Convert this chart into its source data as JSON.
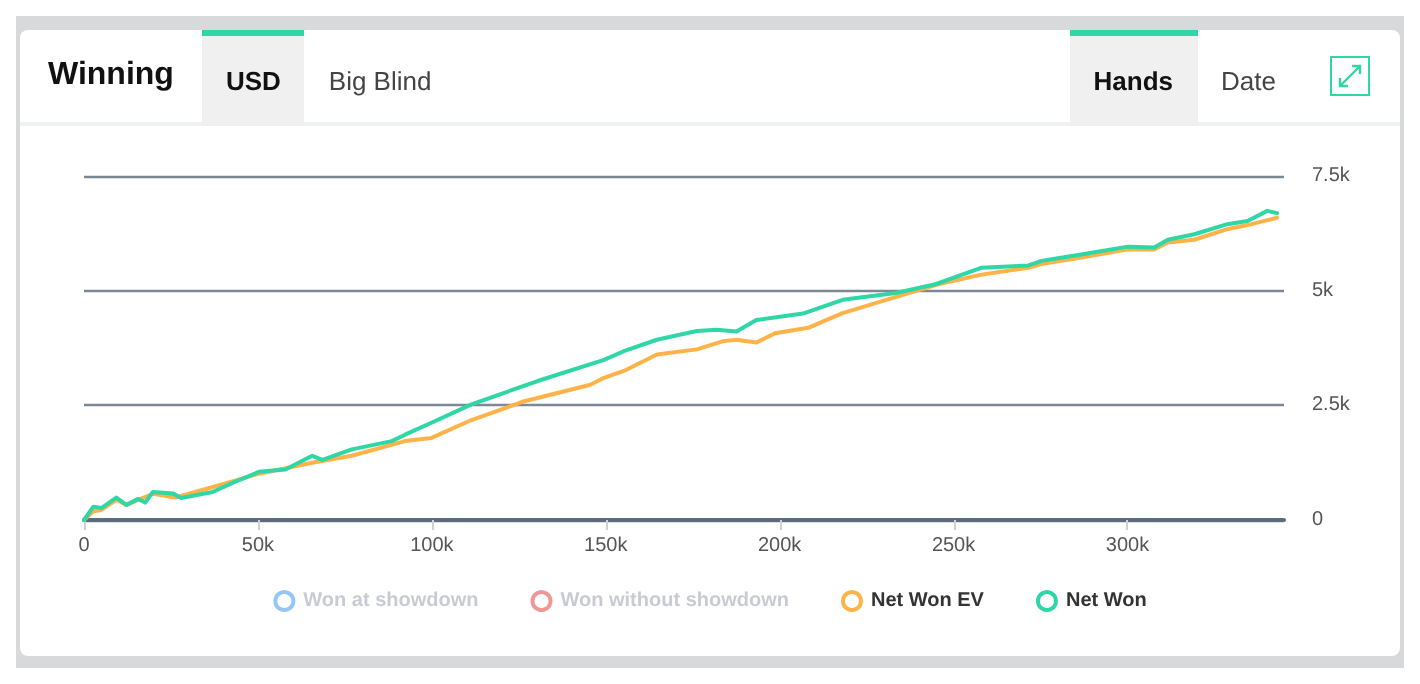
{
  "chart_data": {
    "type": "line",
    "title": "Winning",
    "annotations": [
      "USD",
      "Big Blind",
      "Hands",
      "Date"
    ],
    "xlim": [
      0,
      345000
    ],
    "xticks": [
      0,
      {
        "value": 50000,
        "label": "50k"
      },
      {
        "value": 100000,
        "label": "100k"
      },
      {
        "value": 150000,
        "label": "150k"
      },
      {
        "value": 200000,
        "label": "200k"
      },
      {
        "value": 250000,
        "label": "250k"
      },
      {
        "value": 300000,
        "label": "300k"
      }
    ],
    "ylim": [
      0,
      7500
    ],
    "yticks": [
      0,
      {
        "value": 2500,
        "label": "2.5k"
      },
      {
        "value": 5000,
        "label": "5k"
      },
      {
        "value": 7500,
        "label": "7.5k"
      }
    ],
    "grid": "y",
    "legend": "bottom",
    "marker": "none",
    "line_style": "solid",
    "series": [
      {
        "name": "Won at showdown",
        "color": "#6aaef0"
      },
      {
        "name": "Won without showdown",
        "color": "#e86a6a"
      },
      {
        "name": "Net Won EV",
        "color": "#ffb247",
        "x": [
          0,
          400,
          2700,
          5000,
          9300,
          12200,
          15600,
          19800,
          26300,
          37600,
          50300,
          65600,
          77000,
          92300,
          99900,
          111400,
          126600,
          130400,
          145600,
          149500,
          155200,
          164700,
          176200,
          183800,
          187600,
          193300,
          198700,
          208200,
          218100,
          232800,
          245600,
          258100,
          271500,
          275300,
          286700,
          300100,
          307700,
          311600,
          319200,
          328700,
          334500,
          343000
        ],
        "values": [
          0,
          0,
          190,
          220,
          440,
          330,
          440,
          570,
          490,
          730,
          1010,
          1250,
          1400,
          1720,
          1790,
          2180,
          2590,
          2660,
          2950,
          3100,
          3250,
          3610,
          3720,
          3900,
          3930,
          3870,
          4070,
          4190,
          4510,
          4850,
          5140,
          5350,
          5500,
          5580,
          5720,
          5900,
          5900,
          6050,
          6110,
          6340,
          6430,
          6590
        ]
      },
      {
        "name": "Net Won",
        "color": "#2fd6a6",
        "x": [
          0,
          400,
          2700,
          5000,
          9300,
          12200,
          15600,
          17600,
          19800,
          25600,
          27900,
          37000,
          42700,
          50300,
          57900,
          65600,
          68500,
          77000,
          88500,
          92300,
          99900,
          111400,
          130400,
          149500,
          155200,
          164700,
          176200,
          181900,
          187600,
          193300,
          206700,
          218100,
          233400,
          244800,
          258100,
          271500,
          275300,
          286700,
          300100,
          307700,
          311600,
          319200,
          328700,
          334500,
          340200,
          343000
        ],
        "values": [
          0,
          0,
          290,
          260,
          490,
          330,
          460,
          380,
          610,
          580,
          480,
          610,
          810,
          1050,
          1100,
          1400,
          1310,
          1540,
          1720,
          1860,
          2120,
          2520,
          3030,
          3490,
          3680,
          3930,
          4120,
          4150,
          4110,
          4360,
          4500,
          4800,
          4950,
          5140,
          5500,
          5550,
          5650,
          5790,
          5960,
          5940,
          6110,
          6230,
          6450,
          6520,
          6740,
          6690
        ]
      }
    ]
  }
}
